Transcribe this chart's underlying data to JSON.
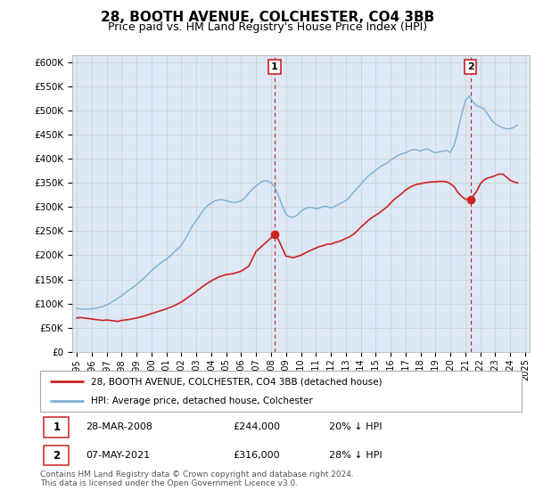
{
  "title": "28, BOOTH AVENUE, COLCHESTER, CO4 3BB",
  "subtitle": "Price paid vs. HM Land Registry's House Price Index (HPI)",
  "ylabel_ticks": [
    "£0",
    "£50K",
    "£100K",
    "£150K",
    "£200K",
    "£250K",
    "£300K",
    "£350K",
    "£400K",
    "£450K",
    "£500K",
    "£550K",
    "£600K"
  ],
  "ytick_values": [
    0,
    50000,
    100000,
    150000,
    200000,
    250000,
    300000,
    350000,
    400000,
    450000,
    500000,
    550000,
    600000
  ],
  "ylim": [
    0,
    615000
  ],
  "x_start_year": 1995,
  "x_end_year": 2025,
  "xtick_years": [
    1995,
    1996,
    1997,
    1998,
    1999,
    2000,
    2001,
    2002,
    2003,
    2004,
    2005,
    2006,
    2007,
    2008,
    2009,
    2010,
    2011,
    2012,
    2013,
    2014,
    2015,
    2016,
    2017,
    2018,
    2019,
    2020,
    2021,
    2022,
    2023,
    2024,
    2025
  ],
  "hpi_color": "#7bafd4",
  "price_color": "#cc2222",
  "plot_bg_color": "#dce8f5",
  "marker1_year": 2008.24,
  "marker1_price": 244000,
  "marker1_label": "1",
  "marker2_year": 2021.35,
  "marker2_price": 316000,
  "marker2_label": "2",
  "legend_line1": "28, BOOTH AVENUE, COLCHESTER, CO4 3BB (detached house)",
  "legend_line2": "HPI: Average price, detached house, Colchester",
  "table_row1": [
    "1",
    "28-MAR-2008",
    "£244,000",
    "20% ↓ HPI"
  ],
  "table_row2": [
    "2",
    "07-MAY-2021",
    "£316,000",
    "28% ↓ HPI"
  ],
  "footnote": "Contains HM Land Registry data © Crown copyright and database right 2024.\nThis data is licensed under the Open Government Licence v3.0.",
  "hpi_data_x": [
    1995.0,
    1995.25,
    1995.5,
    1995.75,
    1996.0,
    1996.25,
    1996.5,
    1996.75,
    1997.0,
    1997.25,
    1997.5,
    1997.75,
    1998.0,
    1998.25,
    1998.5,
    1998.75,
    1999.0,
    1999.25,
    1999.5,
    1999.75,
    2000.0,
    2000.25,
    2000.5,
    2000.75,
    2001.0,
    2001.25,
    2001.5,
    2001.75,
    2002.0,
    2002.25,
    2002.5,
    2002.75,
    2003.0,
    2003.25,
    2003.5,
    2003.75,
    2004.0,
    2004.25,
    2004.5,
    2004.75,
    2005.0,
    2005.25,
    2005.5,
    2005.75,
    2006.0,
    2006.25,
    2006.5,
    2006.75,
    2007.0,
    2007.25,
    2007.5,
    2007.75,
    2008.0,
    2008.25,
    2008.5,
    2008.75,
    2009.0,
    2009.25,
    2009.5,
    2009.75,
    2010.0,
    2010.25,
    2010.5,
    2010.75,
    2011.0,
    2011.25,
    2011.5,
    2011.75,
    2012.0,
    2012.25,
    2012.5,
    2012.75,
    2013.0,
    2013.25,
    2013.5,
    2013.75,
    2014.0,
    2014.25,
    2014.5,
    2014.75,
    2015.0,
    2015.25,
    2015.5,
    2015.75,
    2016.0,
    2016.25,
    2016.5,
    2016.75,
    2017.0,
    2017.25,
    2017.5,
    2017.75,
    2018.0,
    2018.25,
    2018.5,
    2018.75,
    2019.0,
    2019.25,
    2019.5,
    2019.75,
    2020.0,
    2020.25,
    2020.5,
    2020.75,
    2021.0,
    2021.25,
    2021.5,
    2021.75,
    2022.0,
    2022.25,
    2022.5,
    2022.75,
    2023.0,
    2023.25,
    2023.5,
    2023.75,
    2024.0,
    2024.25,
    2024.5
  ],
  "hpi_data_y": [
    90000,
    89000,
    88000,
    88500,
    89000,
    90000,
    92000,
    94000,
    97000,
    101000,
    106000,
    111000,
    116000,
    122000,
    128000,
    133000,
    139000,
    146000,
    153000,
    160000,
    168000,
    175000,
    181000,
    187000,
    192000,
    198000,
    206000,
    213000,
    221000,
    233000,
    247000,
    261000,
    272000,
    283000,
    295000,
    303000,
    308000,
    313000,
    315000,
    315000,
    313000,
    311000,
    309000,
    310000,
    313000,
    319000,
    328000,
    337000,
    343000,
    350000,
    354000,
    354000,
    350000,
    341000,
    323000,
    303000,
    285000,
    279000,
    279000,
    283000,
    291000,
    296000,
    299000,
    299000,
    296000,
    298000,
    301000,
    301000,
    298000,
    301000,
    305000,
    309000,
    313000,
    320000,
    330000,
    338000,
    347000,
    356000,
    364000,
    370000,
    376000,
    382000,
    387000,
    391000,
    397000,
    402000,
    407000,
    410000,
    412000,
    416000,
    419000,
    418000,
    416000,
    419000,
    420000,
    415000,
    412000,
    414000,
    416000,
    417000,
    413000,
    428000,
    458000,
    492000,
    520000,
    530000,
    518000,
    510000,
    507000,
    503000,
    492000,
    480000,
    472000,
    468000,
    464000,
    462000,
    462000,
    465000,
    470000
  ],
  "price_data_x": [
    1995.0,
    1995.25,
    1995.5,
    1995.75,
    1996.0,
    1996.25,
    1996.5,
    1996.75,
    1997.0,
    1997.25,
    1997.5,
    1997.75,
    1998.0,
    1998.5,
    1999.0,
    1999.5,
    2000.0,
    2000.5,
    2001.0,
    2001.5,
    2002.0,
    2002.5,
    2003.0,
    2003.5,
    2004.0,
    2004.5,
    2005.0,
    2005.5,
    2006.0,
    2006.5,
    2007.0,
    2007.5,
    2008.0,
    2008.24,
    2008.5,
    2008.75,
    2009.0,
    2009.5,
    2010.0,
    2010.5,
    2011.0,
    2011.25,
    2011.5,
    2011.75,
    2012.0,
    2012.25,
    2012.5,
    2012.75,
    2013.0,
    2013.25,
    2013.5,
    2013.75,
    2014.0,
    2014.25,
    2014.5,
    2014.75,
    2015.0,
    2015.25,
    2015.5,
    2015.75,
    2016.0,
    2016.25,
    2016.5,
    2016.75,
    2017.0,
    2017.25,
    2017.5,
    2017.75,
    2018.0,
    2018.25,
    2018.5,
    2018.75,
    2019.0,
    2019.25,
    2019.5,
    2019.75,
    2020.0,
    2020.25,
    2020.5,
    2020.75,
    2021.0,
    2021.35,
    2021.5,
    2021.75,
    2022.0,
    2022.25,
    2022.5,
    2022.75,
    2023.0,
    2023.25,
    2023.5,
    2023.75,
    2024.0,
    2024.25,
    2024.5
  ],
  "price_data_y": [
    70000,
    71000,
    70000,
    69000,
    68000,
    67000,
    66000,
    65000,
    66000,
    65000,
    64000,
    63000,
    65000,
    67000,
    70000,
    74000,
    79000,
    84000,
    89000,
    95000,
    103000,
    114000,
    125000,
    137000,
    147000,
    155000,
    160000,
    162000,
    167000,
    177000,
    208000,
    222000,
    236000,
    244000,
    232000,
    215000,
    198000,
    195000,
    200000,
    208000,
    215000,
    218000,
    220000,
    223000,
    223000,
    226000,
    228000,
    231000,
    235000,
    238000,
    243000,
    250000,
    258000,
    265000,
    272000,
    278000,
    283000,
    288000,
    294000,
    300000,
    308000,
    316000,
    322000,
    328000,
    335000,
    340000,
    344000,
    347000,
    348000,
    350000,
    351000,
    352000,
    352000,
    353000,
    353000,
    352000,
    348000,
    342000,
    330000,
    322000,
    316000,
    316000,
    322000,
    332000,
    348000,
    356000,
    360000,
    362000,
    365000,
    368000,
    368000,
    362000,
    355000,
    352000,
    350000
  ]
}
